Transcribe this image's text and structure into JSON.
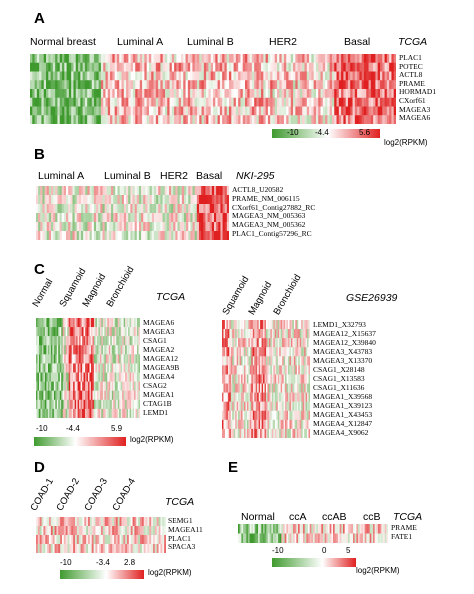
{
  "panels": {
    "A": {
      "letter": "A",
      "dataset": "TCGA",
      "groups": [
        "Normal breast",
        "Luminal A",
        "Luminal B",
        "HER2",
        "Basal"
      ],
      "genes": [
        "PLAC1",
        "POTEC",
        "ACTL8",
        "PRAME",
        "HORMAD1",
        "CXorf61",
        "MAGEA3",
        "MAGEA6"
      ],
      "legend": {
        "min": "-10",
        "mid": "-4.4",
        "max": "5.6",
        "unit": "log2(RPKM)"
      }
    },
    "B": {
      "letter": "B",
      "dataset": "NKI-295",
      "groups": [
        "Luminal A",
        "Luminal B",
        "HER2",
        "Basal"
      ],
      "genes": [
        "ACTL8_U20582",
        "PRAME_NM_006115",
        "CXorf61_Contig27882_RC",
        "MAGEA3_NM_005363",
        "MAGEA3_NM_005362",
        "PLAC1_Contig57296_RC"
      ]
    },
    "C": {
      "letter": "C",
      "left": {
        "dataset": "TCGA",
        "groups": [
          "Normal",
          "Squamoid",
          "Magnoid",
          "Bronchioid"
        ],
        "genes": [
          "MAGEA6",
          "MAGEA3",
          "CSAG1",
          "MAGEA2",
          "MAGEA12",
          "MAGEA9B",
          "MAGEA4",
          "CSAG2",
          "MAGEA1",
          "CTAG1B",
          "LEMD1"
        ]
      },
      "right": {
        "dataset": "GSE26939",
        "groups": [
          "Squamoid",
          "Magnoid",
          "Bronchioid"
        ],
        "genes": [
          "LEMD1_X32793",
          "MAGEA12_X15637",
          "MAGEA12_X39840",
          "MAGEA3_X43783",
          "MAGEA3_X13370",
          "CSAG1_X28148",
          "CSAG1_X13583",
          "CSAG1_X11636",
          "MAGEA1_X39568",
          "MAGEA1_X39123",
          "MAGEA1_X43453",
          "MAGEA4_X12847",
          "MAGEA4_X9062"
        ]
      },
      "legend": {
        "min": "-10",
        "mid": "-4.4",
        "max": "5.9",
        "unit": "log2(RPKM)"
      }
    },
    "D": {
      "letter": "D",
      "dataset": "TCGA",
      "groups": [
        "COAD-1",
        "COAD-2",
        "COAD-3",
        "COAD-4"
      ],
      "genes": [
        "SEMG1",
        "MAGEA11",
        "PLAC1",
        "SPACA3"
      ],
      "legend": {
        "min": "-10",
        "mid": "-3.4",
        "max": "2.8",
        "unit": "log2(RPKM)"
      }
    },
    "E": {
      "letter": "E",
      "dataset": "TCGA",
      "groups": [
        "Normal",
        "ccA",
        "ccAB",
        "ccB"
      ],
      "genes": [
        "PRAME",
        "FATE1"
      ],
      "legend": {
        "min": "-10",
        "mid": "0",
        "max": "5",
        "unit": "log2(RPKM)"
      }
    }
  },
  "colors": {
    "green": "#3f9a2e",
    "white": "#ffffff",
    "red": "#e02020"
  }
}
